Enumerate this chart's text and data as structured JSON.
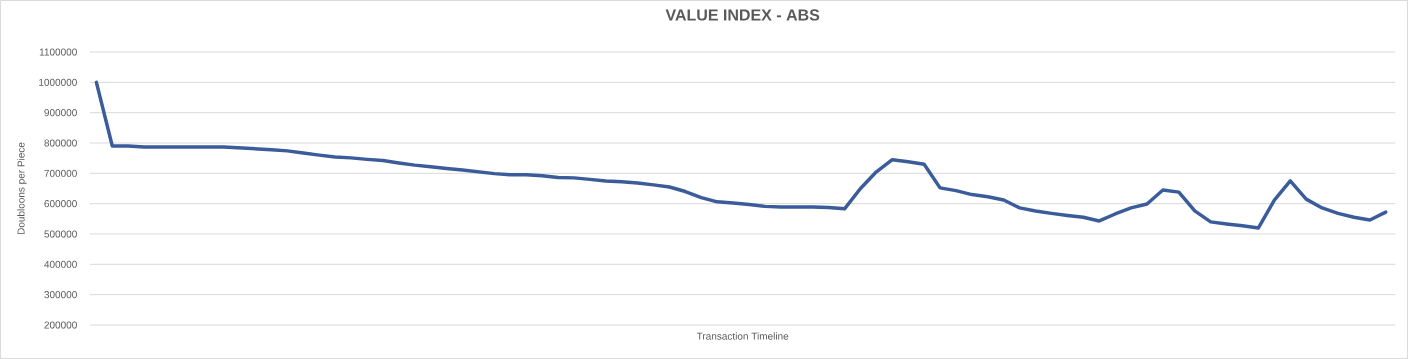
{
  "chart_data": {
    "type": "line",
    "title": "VALUE INDEX - ABS",
    "xlabel": "Transaction Timeline",
    "ylabel": "Doubloons per Piece",
    "categories": [
      null,
      null,
      null,
      null,
      null,
      null,
      null,
      null,
      null,
      null,
      null,
      null,
      null,
      null,
      null,
      null,
      null,
      null,
      null,
      null,
      null,
      null,
      null,
      null,
      null,
      null,
      null,
      null,
      null,
      null,
      null,
      null,
      null,
      null,
      null,
      null,
      null,
      null,
      null,
      null,
      null,
      null,
      null,
      null,
      null,
      null,
      null,
      null,
      null,
      null,
      null,
      null,
      null,
      null,
      null,
      null,
      null,
      null,
      null,
      null,
      null,
      null,
      null,
      null,
      null,
      null,
      null,
      null,
      null,
      null,
      null,
      null,
      null,
      null,
      null,
      null,
      null,
      null,
      null,
      null,
      null,
      null
    ],
    "series": [
      {
        "color": "#3a5c9a",
        "values": [
          1000000,
          790000,
          790000,
          787000,
          787000,
          787000,
          787000,
          787000,
          787000,
          784000,
          781000,
          778000,
          774000,
          767000,
          760000,
          754000,
          751000,
          746000,
          742000,
          734000,
          727000,
          722000,
          716000,
          711000,
          705000,
          699000,
          695000,
          695000,
          692000,
          686000,
          685000,
          680000,
          675000,
          672000,
          668000,
          662000,
          655000,
          640000,
          620000,
          606000,
          602000,
          597000,
          591000,
          589000,
          589000,
          589000,
          587000,
          583000,
          650000,
          705000,
          745000,
          738000,
          730000,
          652000,
          643000,
          630000,
          623000,
          612000,
          586000,
          576000,
          568000,
          561000,
          555000,
          543000,
          566000,
          586000,
          599000,
          645000,
          638000,
          576000,
          540000,
          533000,
          527000,
          520000,
          612000,
          675000,
          615000,
          586000,
          568000,
          555000,
          546000,
          572000
        ]
      }
    ],
    "ylim": [
      200000,
      1100000
    ],
    "yticks": [
      200000,
      300000,
      400000,
      500000,
      600000,
      700000,
      800000,
      900000,
      1000000,
      1100000
    ],
    "grid": "y",
    "marker": "none"
  }
}
